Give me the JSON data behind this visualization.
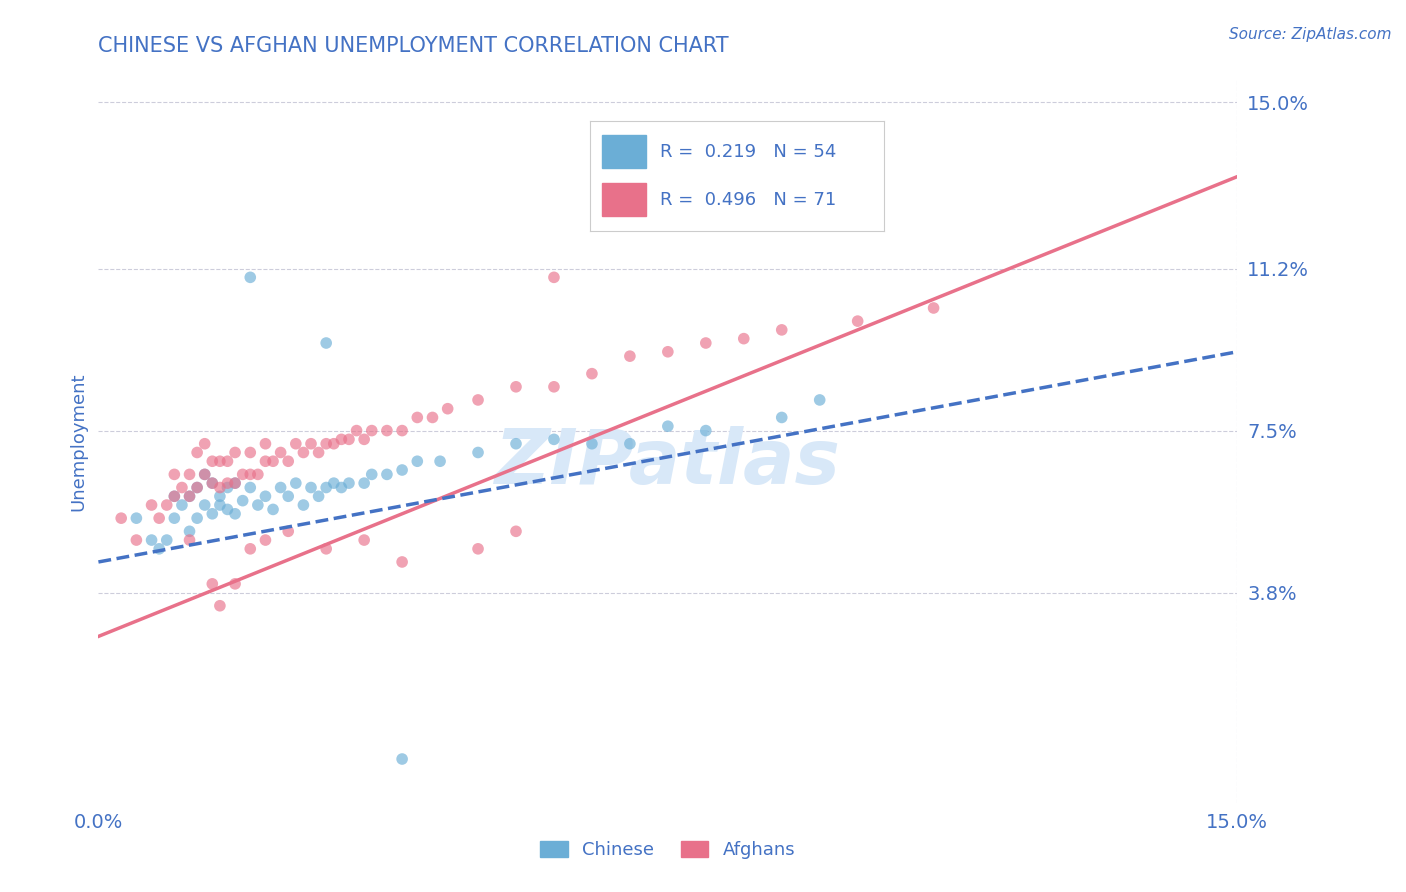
{
  "title": "CHINESE VS AFGHAN UNEMPLOYMENT CORRELATION CHART",
  "source": "Source: ZipAtlas.com",
  "ylabel": "Unemployment",
  "xmin": 0.0,
  "xmax": 0.15,
  "ymin": -0.01,
  "ymax": 0.155,
  "yticks": [
    0.038,
    0.075,
    0.112,
    0.15
  ],
  "ytick_labels": [
    "3.8%",
    "7.5%",
    "11.2%",
    "15.0%"
  ],
  "xticks": [
    0.0,
    0.15
  ],
  "xtick_labels": [
    "0.0%",
    "15.0%"
  ],
  "chinese_R": 0.219,
  "chinese_N": 54,
  "afghan_R": 0.496,
  "afghan_N": 71,
  "chinese_color": "#6baed6",
  "afghan_color": "#e8718a",
  "trendline_chinese_color": "#4472c4",
  "trendline_afghan_color": "#e8718a",
  "background_color": "#ffffff",
  "grid_color": "#c8c8d8",
  "title_color": "#4472c4",
  "axis_label_color": "#4472c4",
  "tick_label_color": "#4472c4",
  "watermark_color": "#d8e8f8",
  "legend_color": "#4472c4",
  "chinese_scatter_x": [
    0.005,
    0.007,
    0.008,
    0.009,
    0.01,
    0.01,
    0.011,
    0.012,
    0.012,
    0.013,
    0.013,
    0.014,
    0.014,
    0.015,
    0.015,
    0.016,
    0.016,
    0.017,
    0.017,
    0.018,
    0.018,
    0.019,
    0.02,
    0.021,
    0.022,
    0.023,
    0.024,
    0.025,
    0.026,
    0.027,
    0.028,
    0.029,
    0.03,
    0.031,
    0.032,
    0.033,
    0.035,
    0.036,
    0.038,
    0.04,
    0.042,
    0.045,
    0.05,
    0.055,
    0.06,
    0.065,
    0.07,
    0.075,
    0.08,
    0.09,
    0.095,
    0.02,
    0.03,
    0.04
  ],
  "chinese_scatter_y": [
    0.055,
    0.05,
    0.048,
    0.05,
    0.055,
    0.06,
    0.058,
    0.052,
    0.06,
    0.055,
    0.062,
    0.058,
    0.065,
    0.056,
    0.063,
    0.058,
    0.06,
    0.057,
    0.062,
    0.056,
    0.063,
    0.059,
    0.062,
    0.058,
    0.06,
    0.057,
    0.062,
    0.06,
    0.063,
    0.058,
    0.062,
    0.06,
    0.062,
    0.063,
    0.062,
    0.063,
    0.063,
    0.065,
    0.065,
    0.066,
    0.068,
    0.068,
    0.07,
    0.072,
    0.073,
    0.072,
    0.072,
    0.076,
    0.075,
    0.078,
    0.082,
    0.11,
    0.095,
    0.0
  ],
  "afghan_scatter_x": [
    0.003,
    0.005,
    0.007,
    0.008,
    0.009,
    0.01,
    0.01,
    0.011,
    0.012,
    0.012,
    0.013,
    0.013,
    0.014,
    0.014,
    0.015,
    0.015,
    0.016,
    0.016,
    0.017,
    0.017,
    0.018,
    0.018,
    0.019,
    0.02,
    0.02,
    0.021,
    0.022,
    0.022,
    0.023,
    0.024,
    0.025,
    0.026,
    0.027,
    0.028,
    0.029,
    0.03,
    0.031,
    0.032,
    0.033,
    0.034,
    0.035,
    0.036,
    0.038,
    0.04,
    0.042,
    0.044,
    0.046,
    0.05,
    0.055,
    0.06,
    0.065,
    0.07,
    0.075,
    0.08,
    0.085,
    0.09,
    0.1,
    0.11,
    0.012,
    0.015,
    0.016,
    0.018,
    0.02,
    0.022,
    0.025,
    0.03,
    0.035,
    0.04,
    0.05,
    0.055,
    0.06
  ],
  "afghan_scatter_y": [
    0.055,
    0.05,
    0.058,
    0.055,
    0.058,
    0.06,
    0.065,
    0.062,
    0.06,
    0.065,
    0.062,
    0.07,
    0.065,
    0.072,
    0.063,
    0.068,
    0.062,
    0.068,
    0.063,
    0.068,
    0.063,
    0.07,
    0.065,
    0.065,
    0.07,
    0.065,
    0.068,
    0.072,
    0.068,
    0.07,
    0.068,
    0.072,
    0.07,
    0.072,
    0.07,
    0.072,
    0.072,
    0.073,
    0.073,
    0.075,
    0.073,
    0.075,
    0.075,
    0.075,
    0.078,
    0.078,
    0.08,
    0.082,
    0.085,
    0.085,
    0.088,
    0.092,
    0.093,
    0.095,
    0.096,
    0.098,
    0.1,
    0.103,
    0.05,
    0.04,
    0.035,
    0.04,
    0.048,
    0.05,
    0.052,
    0.048,
    0.05,
    0.045,
    0.048,
    0.052,
    0.11
  ],
  "chinese_trend_y_start": 0.045,
  "chinese_trend_y_end": 0.093,
  "afghan_trend_y_start": 0.028,
  "afghan_trend_y_end": 0.133
}
